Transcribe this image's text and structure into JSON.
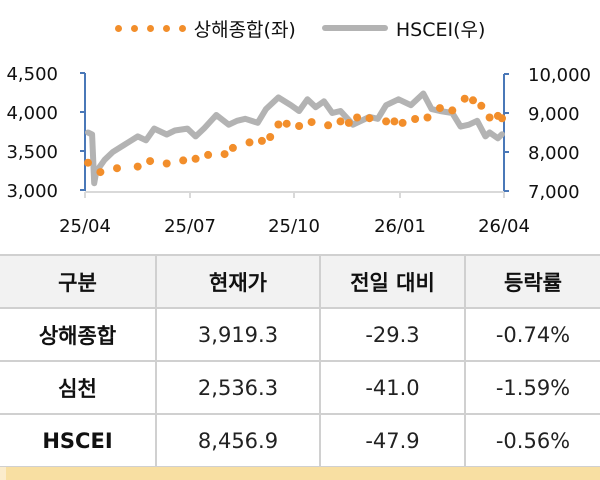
{
  "legend": {
    "series1": "상해종합(좌)",
    "series2": "HSCEI(우)"
  },
  "colors": {
    "shanghai": "#f28e2b",
    "hscei": "#b3b3b3",
    "axis": "#4a78b8",
    "header_bg": "#f2f2f2",
    "footer_strip": "#f8dfa2"
  },
  "axes": {
    "left_ticks": [
      "4,500",
      "4,000",
      "3,500",
      "3,000"
    ],
    "right_ticks": [
      "10,000",
      "9,000",
      "8,000",
      "7,000"
    ],
    "x_ticks": [
      "25/04",
      "25/07",
      "25/10",
      "26/01",
      "26/04"
    ]
  },
  "table": {
    "headers": [
      "구분",
      "현재가",
      "전일 대비",
      "등락률"
    ],
    "rows": [
      {
        "name": "상해종합",
        "price": "3,919.3",
        "change": "-29.3",
        "rate": "-0.74%"
      },
      {
        "name": "심천",
        "price": "2,536.3",
        "change": "-41.0",
        "rate": "-1.59%"
      },
      {
        "name": "HSCEI",
        "price": "8,456.9",
        "change": "-47.9",
        "rate": "-0.56%"
      }
    ]
  },
  "chart_data": {
    "type": "line",
    "title": "",
    "xlabel": "",
    "ylabel": "",
    "x_ticks": [
      "25/04",
      "25/07",
      "25/10",
      "26/01",
      "26/04"
    ],
    "legend_position": "top",
    "grid": false,
    "y_left_range": [
      3000,
      4500
    ],
    "y_right_range": [
      7000,
      10000
    ],
    "series": [
      {
        "name": "상해종합(좌)",
        "axis": "left",
        "style": "dots",
        "x": [
          0.0,
          0.03,
          0.07,
          0.12,
          0.15,
          0.19,
          0.23,
          0.26,
          0.29,
          0.33,
          0.35,
          0.39,
          0.42,
          0.44,
          0.46,
          0.48,
          0.51,
          0.54,
          0.58,
          0.61,
          0.63,
          0.65,
          0.68,
          0.72,
          0.74,
          0.76,
          0.79,
          0.82,
          0.85,
          0.88,
          0.91,
          0.93,
          0.95,
          0.97,
          0.99,
          1.0
        ],
        "values": [
          3350,
          3230,
          3280,
          3300,
          3370,
          3340,
          3380,
          3400,
          3450,
          3460,
          3540,
          3610,
          3630,
          3680,
          3840,
          3850,
          3820,
          3870,
          3830,
          3880,
          3860,
          3930,
          3920,
          3880,
          3880,
          3860,
          3910,
          3930,
          4050,
          4020,
          4170,
          4150,
          4080,
          3930,
          3950,
          3919
        ]
      },
      {
        "name": "HSCEI(우)",
        "axis": "right",
        "style": "line",
        "x": [
          0.0,
          0.01,
          0.015,
          0.02,
          0.04,
          0.06,
          0.09,
          0.12,
          0.14,
          0.16,
          0.19,
          0.21,
          0.24,
          0.26,
          0.28,
          0.31,
          0.34,
          0.36,
          0.38,
          0.41,
          0.43,
          0.46,
          0.49,
          0.51,
          0.53,
          0.55,
          0.57,
          0.59,
          0.61,
          0.64,
          0.66,
          0.68,
          0.7,
          0.72,
          0.75,
          0.78,
          0.81,
          0.83,
          0.85,
          0.88,
          0.9,
          0.92,
          0.94,
          0.96,
          0.97,
          0.99,
          1.0
        ],
        "values": [
          8500,
          8450,
          7200,
          7500,
          7800,
          8000,
          8200,
          8400,
          8300,
          8600,
          8450,
          8550,
          8600,
          8400,
          8600,
          8950,
          8700,
          8800,
          8850,
          8750,
          9100,
          9400,
          9200,
          9050,
          9350,
          9150,
          9300,
          9000,
          9050,
          8700,
          8800,
          8900,
          8850,
          9200,
          9350,
          9200,
          9500,
          9100,
          9050,
          9000,
          8650,
          8700,
          8800,
          8400,
          8500,
          8350,
          8457
        ]
      }
    ]
  }
}
